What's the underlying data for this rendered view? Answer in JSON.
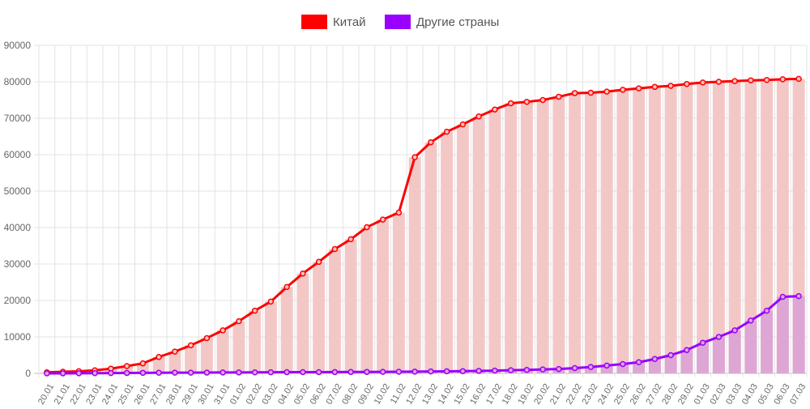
{
  "chart_data": {
    "type": "bar",
    "legend_position": "top-center",
    "grid": true,
    "ylim": [
      0,
      90000
    ],
    "y_ticks": [
      "0",
      "10000",
      "20000",
      "30000",
      "40000",
      "50000",
      "60000",
      "70000",
      "80000",
      "90000"
    ],
    "categories": [
      "20.01",
      "21.01",
      "22.01",
      "23.01",
      "24.01",
      "25.01",
      "26.01",
      "27.01",
      "28.01",
      "29.01",
      "30.01",
      "31.01",
      "01.02",
      "02.02",
      "03.02",
      "04.02",
      "05.02",
      "06.02",
      "07.02",
      "08.02",
      "09.02",
      "10.02",
      "11.02",
      "12.02",
      "13.02",
      "14.02",
      "15.02",
      "16.02",
      "17.02",
      "18.02",
      "19.02",
      "20.02",
      "21.02",
      "22.02",
      "23.02",
      "24.02",
      "25.02",
      "26.02",
      "27.02",
      "28.02",
      "29.02",
      "01.03",
      "02.03",
      "03.03",
      "04.03",
      "05.03",
      "06.03",
      "07.03"
    ],
    "series": [
      {
        "name": "Китай",
        "color": "#ff0000",
        "fill": "#f4c7c7",
        "values": [
          290,
          440,
          570,
          830,
          1290,
          2000,
          2740,
          4500,
          5980,
          7700,
          9680,
          11800,
          14300,
          17200,
          19700,
          23700,
          27400,
          30600,
          34100,
          36800,
          40100,
          42200,
          44100,
          59300,
          63400,
          66300,
          68300,
          70500,
          72400,
          74100,
          74500,
          75000,
          75900,
          76900,
          77000,
          77300,
          77800,
          78200,
          78600,
          78900,
          79400,
          79800,
          80000,
          80200,
          80400,
          80500,
          80700,
          80800
        ]
      },
      {
        "name": "Другие страны",
        "color": "#9900ff",
        "fill": "#dda6d4",
        "values": [
          5,
          10,
          20,
          50,
          80,
          100,
          150,
          170,
          190,
          200,
          210,
          240,
          260,
          280,
          300,
          320,
          330,
          340,
          350,
          380,
          400,
          420,
          440,
          480,
          520,
          570,
          600,
          680,
          760,
          860,
          950,
          1080,
          1200,
          1450,
          1750,
          2150,
          2550,
          3050,
          3950,
          5000,
          6400,
          8400,
          10000,
          11800,
          14500,
          17200,
          21000,
          21200
        ]
      }
    ]
  }
}
